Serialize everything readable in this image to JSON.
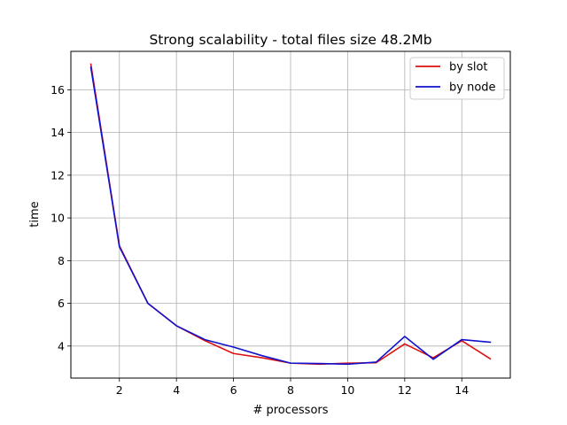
{
  "chart_data": {
    "type": "line",
    "title": "Strong scalability - total files size 48.2Mb",
    "xlabel": "# processors",
    "ylabel": "time",
    "xlim": [
      0.3,
      15.7
    ],
    "ylim": [
      2.5,
      17.8
    ],
    "xticks": [
      2,
      4,
      6,
      8,
      10,
      12,
      14
    ],
    "yticks": [
      4,
      6,
      8,
      10,
      12,
      14,
      16
    ],
    "grid": true,
    "legend_position": "top-right",
    "x": [
      1,
      2,
      3,
      4,
      5,
      6,
      7,
      8,
      9,
      10,
      11,
      12,
      13,
      14,
      15
    ],
    "series": [
      {
        "name": "by slot",
        "color": "#dd1111",
        "values": [
          17.2,
          8.7,
          6.0,
          4.95,
          4.25,
          3.65,
          3.45,
          3.2,
          3.15,
          3.2,
          3.22,
          4.1,
          3.45,
          4.25,
          3.4
        ]
      },
      {
        "name": "by node",
        "color": "#1111cc",
        "values": [
          17.05,
          8.65,
          6.0,
          4.95,
          4.3,
          3.95,
          3.55,
          3.2,
          3.18,
          3.15,
          3.25,
          4.45,
          3.38,
          4.3,
          4.18
        ]
      }
    ]
  }
}
